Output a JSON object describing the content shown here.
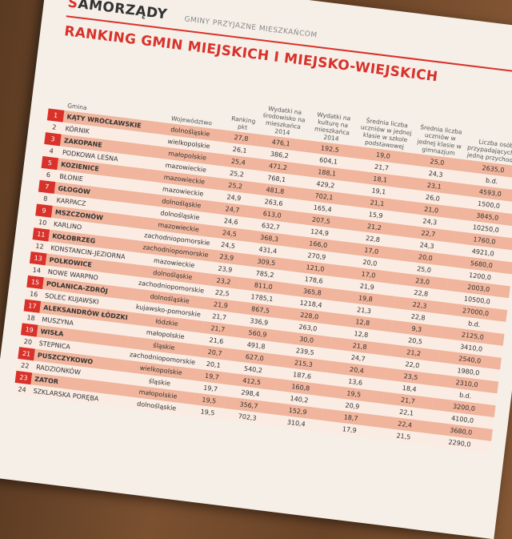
{
  "header": {
    "brand": "SAMORZĄDY",
    "section": "GMINY PRZYJAZNE MIESZKAŃCOM"
  },
  "title": "RANKING GMIN MIEJSKICH I MIEJSKO-WIEJSKICH",
  "table": {
    "columns": [
      "Gmina",
      "Województwo",
      "Ranking pkt",
      "Wydatki na środowisko na mieszkańca 2014",
      "Wydatki na kulturę na mieszkańca 2014",
      "Średnia liczba uczniów w jednej klasie w szkole podstawowej",
      "Średnia liczba uczniów w jednej klasie w gimnazjum",
      "Liczba osób przypadających na jedną przychodnię"
    ],
    "rows": [
      [
        "1",
        "KĄTY WROCŁAWSKIE",
        "dolnośląskie",
        "27,8",
        "476,1",
        "192,5",
        "19,0",
        "25,0",
        "2635,0"
      ],
      [
        "2",
        "KÓRNIK",
        "wielkopolskie",
        "26,1",
        "386,2",
        "604,1",
        "21,7",
        "24,3",
        "b.d."
      ],
      [
        "3",
        "ZAKOPANE",
        "małopolskie",
        "25,4",
        "471,2",
        "188,1",
        "18,1",
        "23,1",
        "4593,0"
      ],
      [
        "4",
        "PODKOWA LEŚNA",
        "mazowieckie",
        "25,2",
        "768,1",
        "429,2",
        "19,1",
        "26,0",
        "1500,0"
      ],
      [
        "5",
        "KOZIENICE",
        "mazowieckie",
        "25,2",
        "481,8",
        "702,1",
        "21,1",
        "21,0",
        "3845,0"
      ],
      [
        "6",
        "BŁONIE",
        "mazowieckie",
        "24,9",
        "263,6",
        "165,4",
        "15,9",
        "24,3",
        "10250,0"
      ],
      [
        "7",
        "GŁOGÓW",
        "dolnośląskie",
        "24,7",
        "613,0",
        "207,5",
        "21,2",
        "22,7",
        "1760,0"
      ],
      [
        "8",
        "KARPACZ",
        "dolnośląskie",
        "24,6",
        "632,7",
        "124,9",
        "22,8",
        "24,3",
        "4921,0"
      ],
      [
        "9",
        "MSZCZONÓW",
        "mazowieckie",
        "24,5",
        "368,3",
        "166,0",
        "17,0",
        "20,0",
        "5680,0"
      ],
      [
        "10",
        "KARLINO",
        "zachodniopomorskie",
        "24,5",
        "431,4",
        "270,9",
        "20,0",
        "25,0",
        "1200,0"
      ],
      [
        "11",
        "KOŁOBRZEG",
        "zachodniopomorskie",
        "23,9",
        "309,5",
        "121,0",
        "17,0",
        "23,0",
        "2003,0"
      ],
      [
        "12",
        "KONSTANCIN-JEZIORNA",
        "mazowieckie",
        "23,9",
        "785,2",
        "178,6",
        "21,9",
        "22,8",
        "10500,0"
      ],
      [
        "13",
        "POLKOWICE",
        "dolnośląskie",
        "23,2",
        "811,0",
        "365,8",
        "19,8",
        "22,3",
        "27000,0"
      ],
      [
        "14",
        "NOWE WARPNO",
        "zachodniopomorskie",
        "22,5",
        "1785,1",
        "1218,4",
        "21,3",
        "22,8",
        "b.d."
      ],
      [
        "15",
        "POLANICA-ZDRÓJ",
        "dolnośląskie",
        "21,9",
        "867,5",
        "228,0",
        "12,8",
        "9,3",
        "2125,0"
      ],
      [
        "16",
        "SOLEC KUJAWSKI",
        "kujawsko-pomorskie",
        "21,7",
        "336,9",
        "263,0",
        "12,8",
        "20,5",
        "3410,0"
      ],
      [
        "17",
        "ALEKSANDRÓW ŁÓDZKI",
        "łódzkie",
        "21,7",
        "560,9",
        "30,0",
        "21,8",
        "21,2",
        "2540,0"
      ],
      [
        "18",
        "MUSZYNA",
        "małopolskie",
        "21,6",
        "491,8",
        "239,5",
        "24,7",
        "22,0",
        "1980,0"
      ],
      [
        "19",
        "WISŁA",
        "śląskie",
        "20,7",
        "627,0",
        "215,3",
        "20,4",
        "23,5",
        "2310,0"
      ],
      [
        "20",
        "STEPNICA",
        "zachodniopomorskie",
        "20,1",
        "540,2",
        "187,6",
        "13,6",
        "18,4",
        "b.d."
      ],
      [
        "21",
        "PUSZCZYKOWO",
        "wielkopolskie",
        "19,7",
        "412,5",
        "160,8",
        "19,5",
        "21,7",
        "3200,0"
      ],
      [
        "22",
        "RADZIONKÓW",
        "śląskie",
        "19,7",
        "298,4",
        "140,2",
        "20,9",
        "22,1",
        "4100,0"
      ],
      [
        "23",
        "ZATOR",
        "małopolskie",
        "19,5",
        "356,7",
        "152,9",
        "18,7",
        "22,4",
        "3680,0"
      ],
      [
        "24",
        "SZKLARSKA PORĘBA",
        "dolnośląskie",
        "19,5",
        "702,3",
        "310,4",
        "17,9",
        "21,5",
        "2290,0"
      ]
    ]
  }
}
